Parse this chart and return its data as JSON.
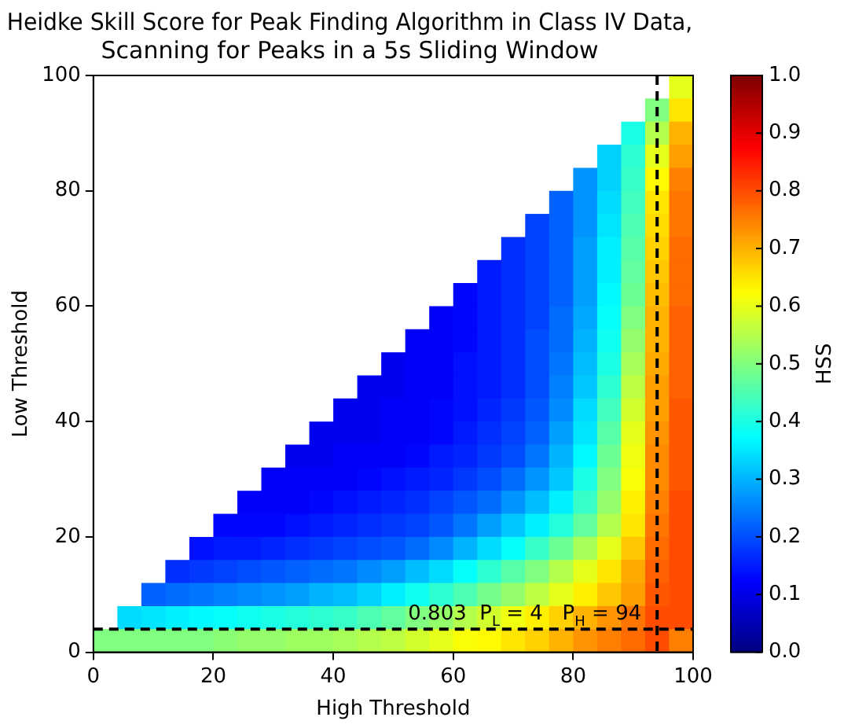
{
  "chart_data": {
    "type": "heatmap",
    "title": "Heidke Skill Score for Peak Finding Algorithm in Class IV Data,\nScanning for Peaks in a 5s Sliding Window",
    "xlabel": "High Threshold",
    "ylabel": "Low Threshold",
    "clabel": "HSS",
    "x": [
      2,
      6,
      10,
      14,
      18,
      22,
      26,
      30,
      34,
      38,
      42,
      46,
      50,
      54,
      58,
      62,
      66,
      70,
      74,
      78,
      82,
      86,
      90,
      94,
      98
    ],
    "y": [
      98,
      94,
      90,
      86,
      82,
      78,
      74,
      70,
      66,
      62,
      58,
      54,
      50,
      46,
      42,
      38,
      34,
      30,
      26,
      22,
      18,
      14,
      10,
      6,
      2
    ],
    "xlim": [
      0,
      100
    ],
    "ylim": [
      0,
      100
    ],
    "xticks": [
      0,
      20,
      40,
      60,
      80,
      100
    ],
    "yticks": [
      0,
      20,
      40,
      60,
      80,
      100
    ],
    "clim": [
      0,
      1
    ],
    "cticks": [
      {
        "value": 0,
        "label": "0.0"
      },
      0.1,
      0.2,
      0.3,
      0.4,
      0.5,
      0.6,
      0.7,
      0.8,
      0.9,
      {
        "value": 1,
        "label": "1.0"
      }
    ],
    "cells": [
      [
        null,
        null,
        null,
        null,
        null,
        null,
        null,
        null,
        null,
        null,
        null,
        null,
        null,
        null,
        null,
        null,
        null,
        null,
        null,
        null,
        null,
        null,
        null,
        null,
        0.6
      ],
      [
        null,
        null,
        null,
        null,
        null,
        null,
        null,
        null,
        null,
        null,
        null,
        null,
        null,
        null,
        null,
        null,
        null,
        null,
        null,
        null,
        null,
        null,
        null,
        0.5,
        0.65
      ],
      [
        null,
        null,
        null,
        null,
        null,
        null,
        null,
        null,
        null,
        null,
        null,
        null,
        null,
        null,
        null,
        null,
        null,
        null,
        null,
        null,
        null,
        null,
        0.4,
        0.55,
        0.7
      ],
      [
        null,
        null,
        null,
        null,
        null,
        null,
        null,
        null,
        null,
        null,
        null,
        null,
        null,
        null,
        null,
        null,
        null,
        null,
        null,
        null,
        null,
        0.33,
        0.42,
        0.6,
        0.72
      ],
      [
        null,
        null,
        null,
        null,
        null,
        null,
        null,
        null,
        null,
        null,
        null,
        null,
        null,
        null,
        null,
        null,
        null,
        null,
        null,
        null,
        0.27,
        0.33,
        0.43,
        0.63,
        0.75
      ],
      [
        null,
        null,
        null,
        null,
        null,
        null,
        null,
        null,
        null,
        null,
        null,
        null,
        null,
        null,
        null,
        null,
        null,
        null,
        null,
        0.22,
        0.27,
        0.34,
        0.44,
        0.65,
        0.76
      ],
      [
        null,
        null,
        null,
        null,
        null,
        null,
        null,
        null,
        null,
        null,
        null,
        null,
        null,
        null,
        null,
        null,
        null,
        null,
        0.19,
        0.22,
        0.27,
        0.35,
        0.45,
        0.66,
        0.76
      ],
      [
        null,
        null,
        null,
        null,
        null,
        null,
        null,
        null,
        null,
        null,
        null,
        null,
        null,
        null,
        null,
        null,
        null,
        0.17,
        0.19,
        0.22,
        0.28,
        0.36,
        0.46,
        0.67,
        0.77
      ],
      [
        null,
        null,
        null,
        null,
        null,
        null,
        null,
        null,
        null,
        null,
        null,
        null,
        null,
        null,
        null,
        null,
        0.15,
        0.17,
        0.19,
        0.22,
        0.28,
        0.36,
        0.47,
        0.68,
        0.77
      ],
      [
        null,
        null,
        null,
        null,
        null,
        null,
        null,
        null,
        null,
        null,
        null,
        null,
        null,
        null,
        null,
        0.13,
        0.15,
        0.17,
        0.19,
        0.22,
        0.28,
        0.37,
        0.48,
        0.69,
        0.77
      ],
      [
        null,
        null,
        null,
        null,
        null,
        null,
        null,
        null,
        null,
        null,
        null,
        null,
        null,
        null,
        0.12,
        0.13,
        0.15,
        0.17,
        0.19,
        0.23,
        0.29,
        0.38,
        0.5,
        0.7,
        0.78
      ],
      [
        null,
        null,
        null,
        null,
        null,
        null,
        null,
        null,
        null,
        null,
        null,
        null,
        null,
        0.12,
        0.12,
        0.13,
        0.15,
        0.17,
        0.2,
        0.23,
        0.3,
        0.39,
        0.52,
        0.7,
        0.78
      ],
      [
        null,
        null,
        null,
        null,
        null,
        null,
        null,
        null,
        null,
        null,
        null,
        null,
        0.11,
        0.12,
        0.12,
        0.14,
        0.15,
        0.17,
        0.2,
        0.24,
        0.31,
        0.4,
        0.54,
        0.71,
        0.78
      ],
      [
        null,
        null,
        null,
        null,
        null,
        null,
        null,
        null,
        null,
        null,
        null,
        0.11,
        0.11,
        0.12,
        0.12,
        0.14,
        0.15,
        0.17,
        0.2,
        0.25,
        0.32,
        0.42,
        0.56,
        0.72,
        0.78
      ],
      [
        null,
        null,
        null,
        null,
        null,
        null,
        null,
        null,
        null,
        null,
        0.11,
        0.11,
        0.12,
        0.12,
        0.13,
        0.14,
        0.16,
        0.18,
        0.21,
        0.26,
        0.34,
        0.44,
        0.58,
        0.72,
        0.79
      ],
      [
        null,
        null,
        null,
        null,
        null,
        null,
        null,
        null,
        null,
        0.11,
        0.11,
        0.11,
        0.12,
        0.12,
        0.13,
        0.15,
        0.17,
        0.19,
        0.22,
        0.28,
        0.35,
        0.46,
        0.6,
        0.73,
        0.79
      ],
      [
        null,
        null,
        null,
        null,
        null,
        null,
        null,
        null,
        0.11,
        0.11,
        0.12,
        0.12,
        0.12,
        0.13,
        0.15,
        0.16,
        0.18,
        0.2,
        0.24,
        0.3,
        0.37,
        0.48,
        0.61,
        0.74,
        0.79
      ],
      [
        null,
        null,
        null,
        null,
        null,
        null,
        null,
        0.12,
        0.12,
        0.12,
        0.12,
        0.13,
        0.14,
        0.15,
        0.16,
        0.18,
        0.2,
        0.23,
        0.27,
        0.32,
        0.4,
        0.5,
        0.62,
        0.74,
        0.79
      ],
      [
        null,
        null,
        null,
        null,
        null,
        null,
        0.12,
        0.12,
        0.12,
        0.13,
        0.14,
        0.15,
        0.16,
        0.17,
        0.19,
        0.21,
        0.23,
        0.27,
        0.31,
        0.36,
        0.43,
        0.52,
        0.64,
        0.75,
        0.8
      ],
      [
        null,
        null,
        null,
        null,
        null,
        0.13,
        0.13,
        0.13,
        0.14,
        0.15,
        0.16,
        0.17,
        0.18,
        0.19,
        0.21,
        0.24,
        0.28,
        0.32,
        0.36,
        0.41,
        0.47,
        0.55,
        0.65,
        0.76,
        0.8
      ],
      [
        null,
        null,
        null,
        null,
        0.14,
        0.15,
        0.15,
        0.16,
        0.17,
        0.18,
        0.19,
        0.2,
        0.21,
        0.23,
        0.26,
        0.3,
        0.34,
        0.38,
        0.43,
        0.48,
        0.54,
        0.6,
        0.68,
        0.77,
        0.8
      ],
      [
        null,
        null,
        null,
        0.17,
        0.18,
        0.19,
        0.2,
        0.21,
        0.22,
        0.23,
        0.24,
        0.26,
        0.28,
        0.31,
        0.34,
        0.38,
        0.42,
        0.46,
        0.5,
        0.55,
        0.6,
        0.65,
        0.71,
        0.78,
        0.8
      ],
      [
        null,
        null,
        0.22,
        0.23,
        0.24,
        0.25,
        0.26,
        0.27,
        0.28,
        0.3,
        0.31,
        0.33,
        0.36,
        0.39,
        0.42,
        0.45,
        0.49,
        0.52,
        0.56,
        0.6,
        0.64,
        0.68,
        0.72,
        0.79,
        0.8
      ],
      [
        null,
        0.34,
        0.35,
        0.36,
        0.37,
        0.38,
        0.39,
        0.4,
        0.41,
        0.42,
        0.43,
        0.45,
        0.47,
        0.5,
        0.52,
        0.55,
        0.58,
        0.61,
        0.64,
        0.67,
        0.7,
        0.73,
        0.76,
        0.8,
        0.8
      ],
      [
        0.5,
        0.5,
        0.5,
        0.5,
        0.5,
        0.51,
        0.52,
        0.52,
        0.53,
        0.53,
        0.54,
        0.55,
        0.56,
        0.58,
        0.6,
        0.62,
        0.63,
        0.65,
        0.67,
        0.7,
        0.73,
        0.75,
        0.77,
        0.8,
        0.75
      ]
    ],
    "ref_lines": [
      {
        "axis": "x",
        "value": 94,
        "color": "#000000",
        "line_style": "dashed"
      },
      {
        "axis": "y",
        "value": 4,
        "color": "#000000",
        "line_style": "dashed"
      }
    ],
    "annotations": [
      {
        "text": "0.803  P$_{L}$ = 4   P$_{H}$ = 94",
        "x": 94,
        "y": 4
      }
    ]
  }
}
